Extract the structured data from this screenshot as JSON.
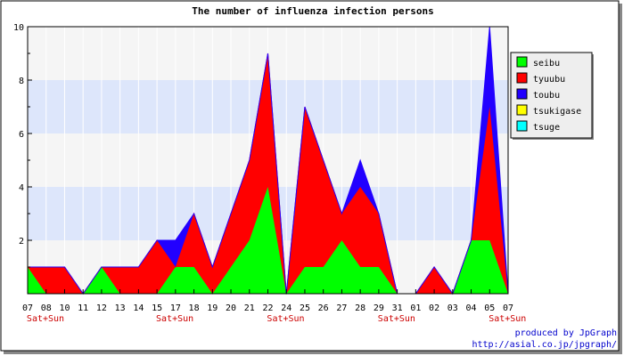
{
  "chart_data": {
    "type": "area",
    "title": "The number of influenza infection persons",
    "stacked": true,
    "ylim": [
      0,
      10
    ],
    "y_ticks": [
      2,
      4,
      6,
      8,
      10
    ],
    "categories": [
      "07",
      "08",
      "10",
      "11",
      "12",
      "13",
      "14",
      "15",
      "17",
      "18",
      "19",
      "20",
      "21",
      "22",
      "24",
      "25",
      "26",
      "27",
      "28",
      "29",
      "31",
      "01",
      "02",
      "03",
      "04",
      "05",
      "07"
    ],
    "sublabels": [
      "Sat+Sun",
      "",
      "",
      "",
      "",
      "",
      "",
      "Sat+Sun",
      "",
      "",
      "",
      "",
      "",
      "Sat+Sun",
      "",
      "",
      "",
      "",
      "",
      "Sat+Sun",
      "",
      "",
      "",
      "",
      "",
      "Sat+Sun",
      ""
    ],
    "series": [
      {
        "name": "seibu",
        "color": "#00ff00",
        "values": [
          1,
          0,
          0,
          0,
          1,
          0,
          0,
          0,
          1,
          1,
          0,
          1,
          2,
          4,
          0,
          1,
          1,
          2,
          1,
          1,
          0,
          0,
          0,
          0,
          2,
          2,
          0
        ]
      },
      {
        "name": "tyuubu",
        "color": "#ff0000",
        "values": [
          0,
          1,
          1,
          0,
          0,
          1,
          1,
          2,
          0,
          2,
          1,
          2,
          3,
          5,
          0,
          6,
          4,
          1,
          3,
          2,
          0,
          0,
          1,
          0,
          0,
          5,
          0
        ]
      },
      {
        "name": "toubu",
        "color": "#2200ff",
        "values": [
          0,
          0,
          0,
          0,
          0,
          0,
          0,
          0,
          1,
          0,
          0,
          0,
          0,
          0,
          0,
          0,
          0,
          0,
          1,
          0,
          0,
          0,
          0,
          0,
          0,
          3,
          0
        ]
      },
      {
        "name": "tsukigase",
        "color": "#ffff00",
        "values": [
          0,
          0,
          0,
          0,
          0,
          0,
          0,
          0,
          0,
          0,
          0,
          0,
          0,
          0,
          0,
          0,
          0,
          0,
          0,
          0,
          0,
          0,
          0,
          0,
          0,
          0,
          0
        ]
      },
      {
        "name": "tsuge",
        "color": "#00ffff",
        "values": [
          0,
          0,
          0,
          0,
          0,
          0,
          0,
          0,
          0,
          0,
          0,
          0,
          0,
          0,
          0,
          0,
          0,
          0,
          0,
          0,
          0,
          0,
          0,
          0,
          0,
          0,
          0
        ]
      }
    ],
    "band_colors": [
      "#dde6fb",
      "#f5f5f5"
    ],
    "legend_position": "right",
    "grid": false
  },
  "footer": {
    "credit": "produced by JpGraph",
    "url": "http://asial.co.jp/jpgraph/",
    "color": "#0000cc"
  },
  "weekend_label_color": "#cc0000"
}
